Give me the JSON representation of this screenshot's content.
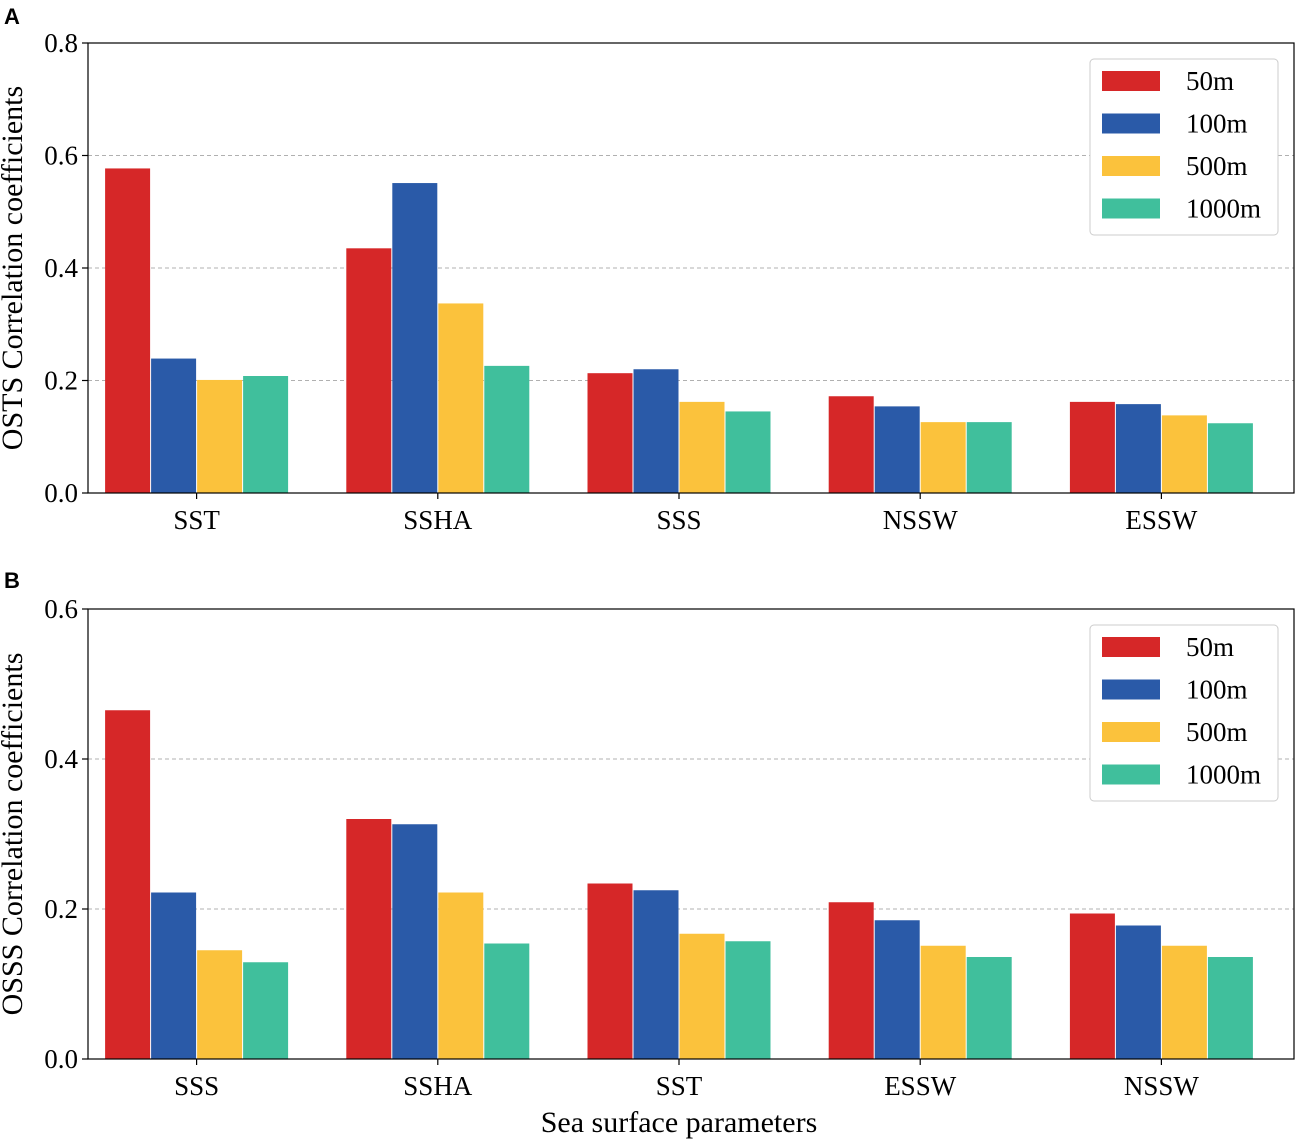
{
  "chart_data": [
    {
      "type": "bar",
      "panel": "A",
      "ylabel": "OSTS Correlation coefficients",
      "xlabel": "",
      "ylim": [
        0,
        0.8
      ],
      "yticks": [
        "0.0",
        "0.2",
        "0.4",
        "0.6",
        "0.8"
      ],
      "categories": [
        "SST",
        "SSHA",
        "SSS",
        "NSSW",
        "ESSW"
      ],
      "legend_position": "top-right",
      "series": [
        {
          "name": "50m",
          "color": "#d62728",
          "values": [
            0.577,
            0.435,
            0.213,
            0.172,
            0.162
          ]
        },
        {
          "name": "100m",
          "color": "#2a5aa8",
          "values": [
            0.239,
            0.551,
            0.22,
            0.154,
            0.158
          ]
        },
        {
          "name": "500m",
          "color": "#fbc23c",
          "values": [
            0.201,
            0.337,
            0.162,
            0.126,
            0.138
          ]
        },
        {
          "name": "1000m",
          "color": "#40bf9c",
          "values": [
            0.208,
            0.226,
            0.145,
            0.126,
            0.124
          ]
        }
      ]
    },
    {
      "type": "bar",
      "panel": "B",
      "ylabel": "OSSS Correlation coefficients",
      "xlabel": "Sea surface parameters",
      "ylim": [
        0,
        0.6
      ],
      "yticks": [
        "0.0",
        "0.2",
        "0.4",
        "0.6"
      ],
      "categories": [
        "SSS",
        "SSHA",
        "SST",
        "ESSW",
        "NSSW"
      ],
      "legend_position": "top-right",
      "series": [
        {
          "name": "50m",
          "color": "#d62728",
          "values": [
            0.465,
            0.32,
            0.234,
            0.209,
            0.194
          ]
        },
        {
          "name": "100m",
          "color": "#2a5aa8",
          "values": [
            0.222,
            0.313,
            0.225,
            0.185,
            0.178
          ]
        },
        {
          "name": "500m",
          "color": "#fbc23c",
          "values": [
            0.145,
            0.222,
            0.167,
            0.151,
            0.151
          ]
        },
        {
          "name": "1000m",
          "color": "#40bf9c",
          "values": [
            0.129,
            0.154,
            0.157,
            0.136,
            0.136
          ]
        }
      ]
    }
  ]
}
